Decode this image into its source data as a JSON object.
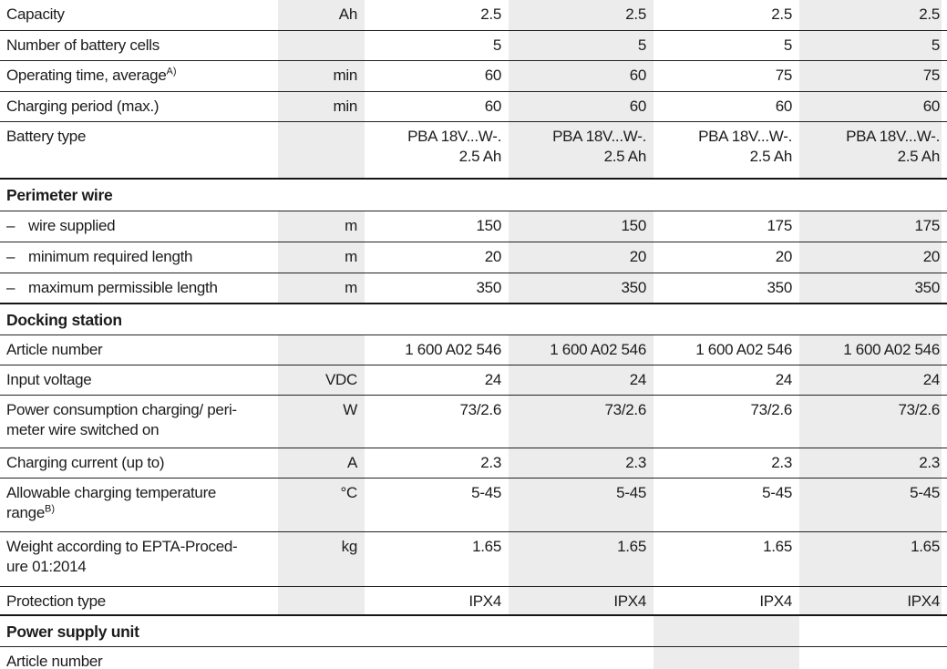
{
  "colors": {
    "stripe_gray": "#ececec",
    "rule_thin": "#222222",
    "rule_heavy": "#161616",
    "bottom_bar": "#2e2a28",
    "text": "#1c1c1c",
    "background": "#ffffff"
  },
  "table": {
    "rows": [
      {
        "label": "Capacity",
        "unit": "Ah",
        "values": [
          "2.5",
          "2.5",
          "2.5",
          "2.5"
        ]
      },
      {
        "label": "Number of battery cells",
        "unit": "",
        "values": [
          "5",
          "5",
          "5",
          "5"
        ]
      },
      {
        "label": "Operating time, average",
        "sup": "A)",
        "unit": "min",
        "values": [
          "60",
          "60",
          "75",
          "75"
        ]
      },
      {
        "label": "Charging period (max.)",
        "unit": "min",
        "values": [
          "60",
          "60",
          "60",
          "60"
        ]
      },
      {
        "label": "Battery type",
        "unit": "",
        "values": [
          "PBA 18V...W-.\n2.5 Ah",
          "PBA 18V...W-.\n2.5 Ah",
          "PBA 18V...W-.\n2.5 Ah",
          "PBA 18V...W-.\n2.5 Ah"
        ]
      },
      {
        "section": "Perimeter wire"
      },
      {
        "dash": "–",
        "label": "wire supplied",
        "unit": "m",
        "values": [
          "150",
          "150",
          "175",
          "175"
        ]
      },
      {
        "dash": "–",
        "label": "minimum required length",
        "unit": "m",
        "values": [
          "20",
          "20",
          "20",
          "20"
        ]
      },
      {
        "dash": "–",
        "label": "maximum permissible length",
        "unit": "m",
        "values": [
          "350",
          "350",
          "350",
          "350"
        ]
      },
      {
        "section": "Docking station"
      },
      {
        "label": "Article number",
        "unit": "",
        "values": [
          "1 600 A02 546",
          "1 600 A02 546",
          "1 600 A02 546",
          "1 600 A02 546"
        ]
      },
      {
        "label": "Input voltage",
        "unit": "VDC",
        "values": [
          "24",
          "24",
          "24",
          "24"
        ]
      },
      {
        "label": "Power consumption charging/ peri-\nmeter wire switched on",
        "unit": "W",
        "values": [
          "73/2.6",
          "73/2.6",
          "73/2.6",
          "73/2.6"
        ]
      },
      {
        "label": "Charging current (up to)",
        "unit": "A",
        "values": [
          "2.3",
          "2.3",
          "2.3",
          "2.3"
        ]
      },
      {
        "label": "Allowable charging temperature\nrange",
        "sup": "B)",
        "unit": "°C",
        "values": [
          "5-45",
          "5-45",
          "5-45",
          "5-45"
        ]
      },
      {
        "label": "Weight according to EPTA-Proced-\nure 01:2014",
        "unit": "kg",
        "values": [
          "1.65",
          "1.65",
          "1.65",
          "1.65"
        ]
      },
      {
        "label": "Protection type",
        "unit": "",
        "values": [
          "IPX4",
          "IPX4",
          "IPX4",
          "IPX4"
        ]
      },
      {
        "section": "Power supply unit"
      },
      {
        "label": "Article number",
        "unit": "",
        "values": [
          "",
          "",
          "",
          ""
        ]
      }
    ]
  }
}
